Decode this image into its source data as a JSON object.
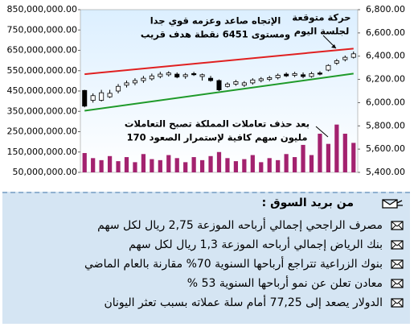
{
  "chart_data": {
    "type": "candlestick",
    "categories": [
      null,
      null,
      null,
      null,
      null,
      null,
      null,
      null,
      null,
      null,
      null,
      null,
      null,
      null,
      null,
      null,
      null,
      null,
      null,
      null,
      null,
      null,
      null,
      null,
      null,
      null,
      null,
      null,
      null,
      null,
      null,
      null,
      null
    ],
    "ylim": [
      50000000,
      850000000
    ],
    "yticks": [
      {
        "value": 850000000,
        "label": "850,000,000.00"
      },
      {
        "value": 750000000,
        "label": "750,000,000.00"
      },
      {
        "value": 650000000,
        "label": "650,000,000.00"
      },
      {
        "value": 550000000,
        "label": "550,000,000.00"
      },
      {
        "value": 450000000,
        "label": "450,000,000.00"
      },
      {
        "value": 350000000,
        "label": "350,000,000.00"
      },
      {
        "value": 250000000,
        "label": "250,000,000.00"
      },
      {
        "value": 150000000,
        "label": "150,000,000.00"
      },
      {
        "value": 50000000,
        "label": "50,000,000.00"
      }
    ],
    "y2lim": [
      5400,
      6800
    ],
    "y2ticks": [
      {
        "value": 6800,
        "label": "6,800.00"
      },
      {
        "value": 6600,
        "label": "6,600.00"
      },
      {
        "value": 6400,
        "label": "6,400.00"
      },
      {
        "value": 6200,
        "label": "6,200.00"
      },
      {
        "value": 6000,
        "label": "6,000.00"
      },
      {
        "value": 5800,
        "label": "5,800.00"
      },
      {
        "value": 5600,
        "label": "5,600.00"
      },
      {
        "value": 5400,
        "label": "5,400.00"
      }
    ],
    "volume": {
      "color": "#a3226f",
      "values": [
        145000000,
        120000000,
        110000000,
        130000000,
        105000000,
        125000000,
        100000000,
        140000000,
        115000000,
        110000000,
        135000000,
        120000000,
        100000000,
        125000000,
        110000000,
        130000000,
        150000000,
        120000000,
        105000000,
        115000000,
        135000000,
        100000000,
        120000000,
        110000000,
        140000000,
        125000000,
        185000000,
        135000000,
        240000000,
        190000000,
        285000000,
        240000000,
        195000000
      ]
    },
    "price": {
      "axis": "y2",
      "up_color": "#ffffff",
      "down_color": "#000000",
      "open": [
        6105,
        6020,
        6020,
        6050,
        6100,
        6150,
        6170,
        6190,
        6205,
        6225,
        6240,
        6245,
        6225,
        6250,
        6225,
        6210,
        6190,
        6140,
        6160,
        6150,
        6170,
        6190,
        6200,
        6215,
        6245,
        6235,
        6240,
        6225,
        6255,
        6280,
        6340,
        6370,
        6390
      ],
      "high": [
        6110,
        6080,
        6110,
        6110,
        6160,
        6190,
        6210,
        6230,
        6250,
        6265,
        6270,
        6260,
        6255,
        6265,
        6250,
        6230,
        6200,
        6175,
        6195,
        6185,
        6210,
        6220,
        6230,
        6250,
        6260,
        6265,
        6260,
        6265,
        6270,
        6330,
        6375,
        6405,
        6440
      ],
      "low": [
        5960,
        6000,
        6010,
        6040,
        6080,
        6130,
        6150,
        6170,
        6190,
        6210,
        6225,
        6210,
        6205,
        6230,
        6190,
        6180,
        6100,
        6130,
        6145,
        6135,
        6155,
        6175,
        6185,
        6200,
        6220,
        6220,
        6210,
        6215,
        6235,
        6270,
        6325,
        6355,
        6380
      ],
      "close": [
        5970,
        6060,
        6085,
        6080,
        6140,
        6170,
        6190,
        6210,
        6230,
        6245,
        6255,
        6220,
        6240,
        6240,
        6240,
        6190,
        6110,
        6160,
        6180,
        6170,
        6195,
        6205,
        6215,
        6235,
        6230,
        6250,
        6225,
        6250,
        6245,
        6320,
        6360,
        6390,
        6420
      ]
    },
    "trendlines": [
      {
        "color": "#e02020",
        "values": [
          6245,
          6465
        ]
      },
      {
        "color": "#1f9a2a",
        "values": [
          5930,
          6250
        ]
      }
    ],
    "annotations": [
      {
        "lines": [
          "الإتجاه صاعد وعزمه قوي جدا",
          "ومستوى 6451 نقطة هدف قريب"
        ]
      },
      {
        "lines": [
          "حركة متوقعة",
          "لجلسة اليوم"
        ]
      },
      {
        "lines": [
          "بعد حذف تعاملات المملكة تصبح التعاملات",
          "170 مليون سهم كافية لإستمرار الصعود"
        ]
      }
    ]
  },
  "market_mail": {
    "title": "من بريد السوق :",
    "items": [
      "مصرف الراجحي إجمالي أرباحه الموزعة 2,75 ريال لكل سهم",
      "بنك الرياض إجمالي أرباحه الموزعة 1,3 ريال لكل سهم",
      "بنوك الزراعية تتراجع أرباحها السنوية 70% مقارنة بالعام الماضي",
      "معادن تعلن عن نمو أرباحها السنوية 53 %",
      "الدولار يصعد إلى 77,25 أمام سلة عملاته بسبب تعثر اليونان"
    ]
  }
}
